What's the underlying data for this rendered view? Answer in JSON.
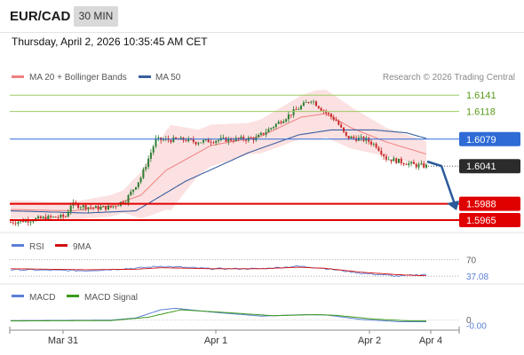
{
  "header": {
    "symbol": "EUR/CAD",
    "timeframe": "30 MIN",
    "timestamp": "Thursday, April 2, 2026 10:35:45 AM CET"
  },
  "colors": {
    "bullish": "#2e7d32",
    "bearish": "#c62828",
    "bollinger": "#f8c8c8",
    "ma20": "#f08080",
    "ma50": "#3a5fa0",
    "resistance": "#9ccc65",
    "support": "#e00000",
    "pivot": "#2e6bd6",
    "price_tag": "#2b2b2b",
    "rsi": "#5b7fd6",
    "rsi_ma": "#d01010",
    "macd": "#5b7fd6",
    "macd_signal": "#3a9a1a",
    "arrow": "#2a5a9a"
  },
  "chart_data": [
    {
      "type": "candlestick",
      "panel": "price",
      "title": "",
      "legend": [
        "MA 20 + Bollinger Bands",
        "MA 50"
      ],
      "attribution": "Research © 2026 Trading Central",
      "ylim": [
        1.5955,
        1.6155
      ],
      "x_tick_labels": [
        "Mar 31",
        "Apr 1",
        "Apr 2",
        "Apr 4"
      ],
      "levels": [
        {
          "value": 1.6141,
          "label": "1.6141",
          "kind": "resistance"
        },
        {
          "value": 1.6118,
          "label": "1.6118",
          "kind": "resistance"
        },
        {
          "value": 1.6079,
          "label": "1.6079",
          "kind": "pivot"
        },
        {
          "value": 1.6041,
          "label": "1.6041",
          "kind": "last_price"
        },
        {
          "value": 1.5988,
          "label": "1.5988",
          "kind": "support"
        },
        {
          "value": 1.5965,
          "label": "1.5965",
          "kind": "support"
        }
      ],
      "close_anchors": [
        [
          0,
          1.5962
        ],
        [
          14,
          1.5968
        ],
        [
          22,
          1.597
        ],
        [
          24,
          1.5987
        ],
        [
          34,
          1.5982
        ],
        [
          40,
          1.5983
        ],
        [
          46,
          1.5993
        ],
        [
          52,
          1.6025
        ],
        [
          58,
          1.6078
        ],
        [
          70,
          1.6078
        ],
        [
          74,
          1.6075
        ],
        [
          84,
          1.6078
        ],
        [
          98,
          1.608
        ],
        [
          106,
          1.61
        ],
        [
          120,
          1.6135
        ],
        [
          124,
          1.6122
        ],
        [
          130,
          1.6105
        ],
        [
          134,
          1.6082
        ],
        [
          142,
          1.6078
        ],
        [
          146,
          1.607
        ],
        [
          150,
          1.6052
        ],
        [
          156,
          1.6047
        ],
        [
          162,
          1.6042
        ],
        [
          166,
          1.6041
        ]
      ],
      "ma20_anchors": [
        [
          0,
          1.598
        ],
        [
          25,
          1.5978
        ],
        [
          40,
          1.5985
        ],
        [
          52,
          1.6
        ],
        [
          62,
          1.6035
        ],
        [
          80,
          1.607
        ],
        [
          100,
          1.6083
        ],
        [
          116,
          1.611
        ],
        [
          126,
          1.6115
        ],
        [
          136,
          1.6095
        ],
        [
          150,
          1.6075
        ],
        [
          166,
          1.6058
        ]
      ],
      "ma50_anchors": [
        [
          0,
          1.5978
        ],
        [
          30,
          1.5975
        ],
        [
          50,
          1.5978
        ],
        [
          70,
          1.602
        ],
        [
          95,
          1.606
        ],
        [
          115,
          1.6085
        ],
        [
          128,
          1.6092
        ],
        [
          145,
          1.6092
        ],
        [
          158,
          1.6088
        ],
        [
          166,
          1.608
        ]
      ],
      "bollinger_width_anchors": [
        [
          0,
          0.0013
        ],
        [
          20,
          0.0012
        ],
        [
          45,
          0.0016
        ],
        [
          55,
          0.004
        ],
        [
          64,
          0.006
        ],
        [
          75,
          0.0032
        ],
        [
          95,
          0.0022
        ],
        [
          115,
          0.003
        ],
        [
          122,
          0.0035
        ],
        [
          135,
          0.003
        ],
        [
          150,
          0.002
        ],
        [
          166,
          0.0018
        ]
      ]
    },
    {
      "type": "line",
      "panel": "rsi",
      "legend": [
        "RSI",
        "9MA"
      ],
      "ylim": [
        25,
        80
      ],
      "levels": [
        {
          "value": 70,
          "label": "70"
        },
        {
          "value": 37.08,
          "label": "37.08",
          "kind": "last"
        }
      ],
      "series": [
        {
          "name": "RSI",
          "anchors": [
            [
              0,
              50
            ],
            [
              30,
              48
            ],
            [
              50,
              53
            ],
            [
              60,
              57
            ],
            [
              80,
              52
            ],
            [
              100,
              52
            ],
            [
              115,
              57
            ],
            [
              125,
              53
            ],
            [
              140,
              43
            ],
            [
              155,
              37
            ],
            [
              166,
              41
            ]
          ]
        },
        {
          "name": "9MA",
          "anchors": [
            [
              0,
              52
            ],
            [
              30,
              50
            ],
            [
              50,
              51
            ],
            [
              60,
              54
            ],
            [
              80,
              52
            ],
            [
              100,
              52
            ],
            [
              115,
              55
            ],
            [
              125,
              53
            ],
            [
              140,
              45
            ],
            [
              155,
              40
            ],
            [
              166,
              38
            ]
          ]
        }
      ]
    },
    {
      "type": "line",
      "panel": "macd",
      "legend": [
        "MACD",
        "MACD Signal"
      ],
      "ylim": [
        -0.0022,
        0.004
      ],
      "levels": [
        {
          "value": 0,
          "label": "0"
        },
        {
          "value": -0.0002,
          "label": "-0.00",
          "kind": "last"
        }
      ],
      "series": [
        {
          "name": "MACD",
          "anchors": [
            [
              0,
              -0.0001
            ],
            [
              40,
              0.0
            ],
            [
              50,
              0.0006
            ],
            [
              60,
              0.0028
            ],
            [
              66,
              0.0032
            ],
            [
              80,
              0.0022
            ],
            [
              100,
              0.0011
            ],
            [
              118,
              0.0015
            ],
            [
              126,
              0.0014
            ],
            [
              140,
              0.0002
            ],
            [
              155,
              -0.0004
            ],
            [
              166,
              -0.0004
            ]
          ]
        },
        {
          "name": "MACD Signal",
          "anchors": [
            [
              0,
              -0.0002
            ],
            [
              40,
              -0.0001
            ],
            [
              55,
              0.0008
            ],
            [
              68,
              0.0028
            ],
            [
              85,
              0.0021
            ],
            [
              105,
              0.0012
            ],
            [
              122,
              0.0015
            ],
            [
              130,
              0.0013
            ],
            [
              145,
              0.0003
            ],
            [
              160,
              -0.0002
            ],
            [
              166,
              -0.0002
            ]
          ]
        }
      ]
    }
  ]
}
